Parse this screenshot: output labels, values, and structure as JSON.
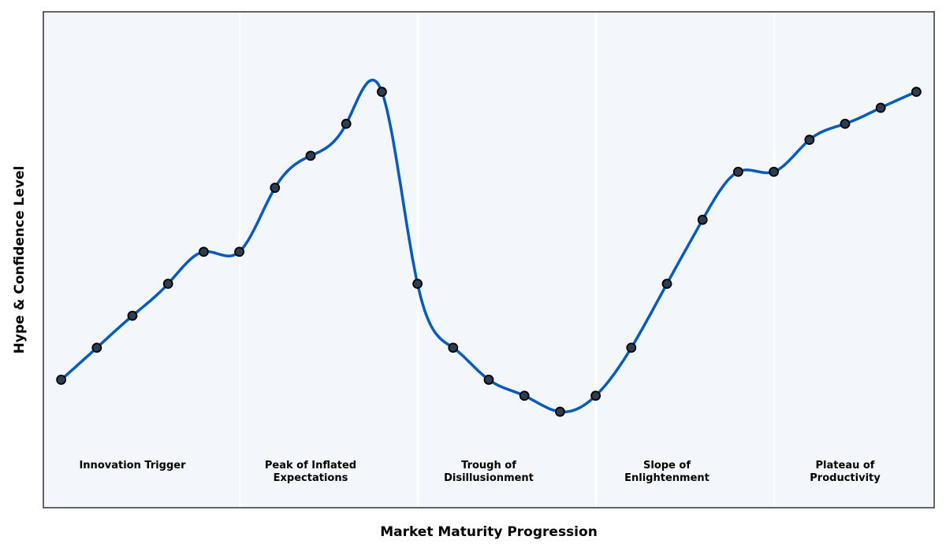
{
  "chart_data": {
    "type": "line",
    "title": "",
    "xlabel": "Market Maturity Progression",
    "ylabel": "Hype & Confidence Level",
    "x": [
      0,
      1,
      2,
      3,
      4,
      5,
      6,
      7,
      8,
      9,
      10,
      11,
      12,
      13,
      14,
      15,
      16,
      17,
      18,
      19,
      20,
      21,
      22,
      23,
      24
    ],
    "y": [
      2,
      3,
      4,
      5,
      6,
      6,
      8,
      9,
      10,
      11,
      5,
      3,
      2,
      1.5,
      1,
      1.5,
      3,
      5,
      7,
      8.5,
      8.5,
      9.5,
      10,
      10.5,
      11
    ],
    "xlim": [
      -0.5,
      24.5
    ],
    "ylim": [
      -2,
      13.5
    ],
    "grid": false,
    "smoothed": true,
    "phase_boundaries": [
      5,
      10,
      15,
      20
    ],
    "phases": [
      {
        "label": "Innovation Trigger",
        "x": 2
      },
      {
        "label": "Peak of Inflated\nExpectations",
        "x": 7
      },
      {
        "label": "Trough of\nDisillusionment",
        "x": 12
      },
      {
        "label": "Slope of\nEnlightenment",
        "x": 17
      },
      {
        "label": "Plateau of\nProductivity",
        "x": 22
      }
    ],
    "colors": {
      "line": "#005bbb",
      "marker_fill": "#2c3e50",
      "marker_edge": "#000000",
      "background": "#f3f6fa",
      "divider": "#ffffff"
    }
  }
}
